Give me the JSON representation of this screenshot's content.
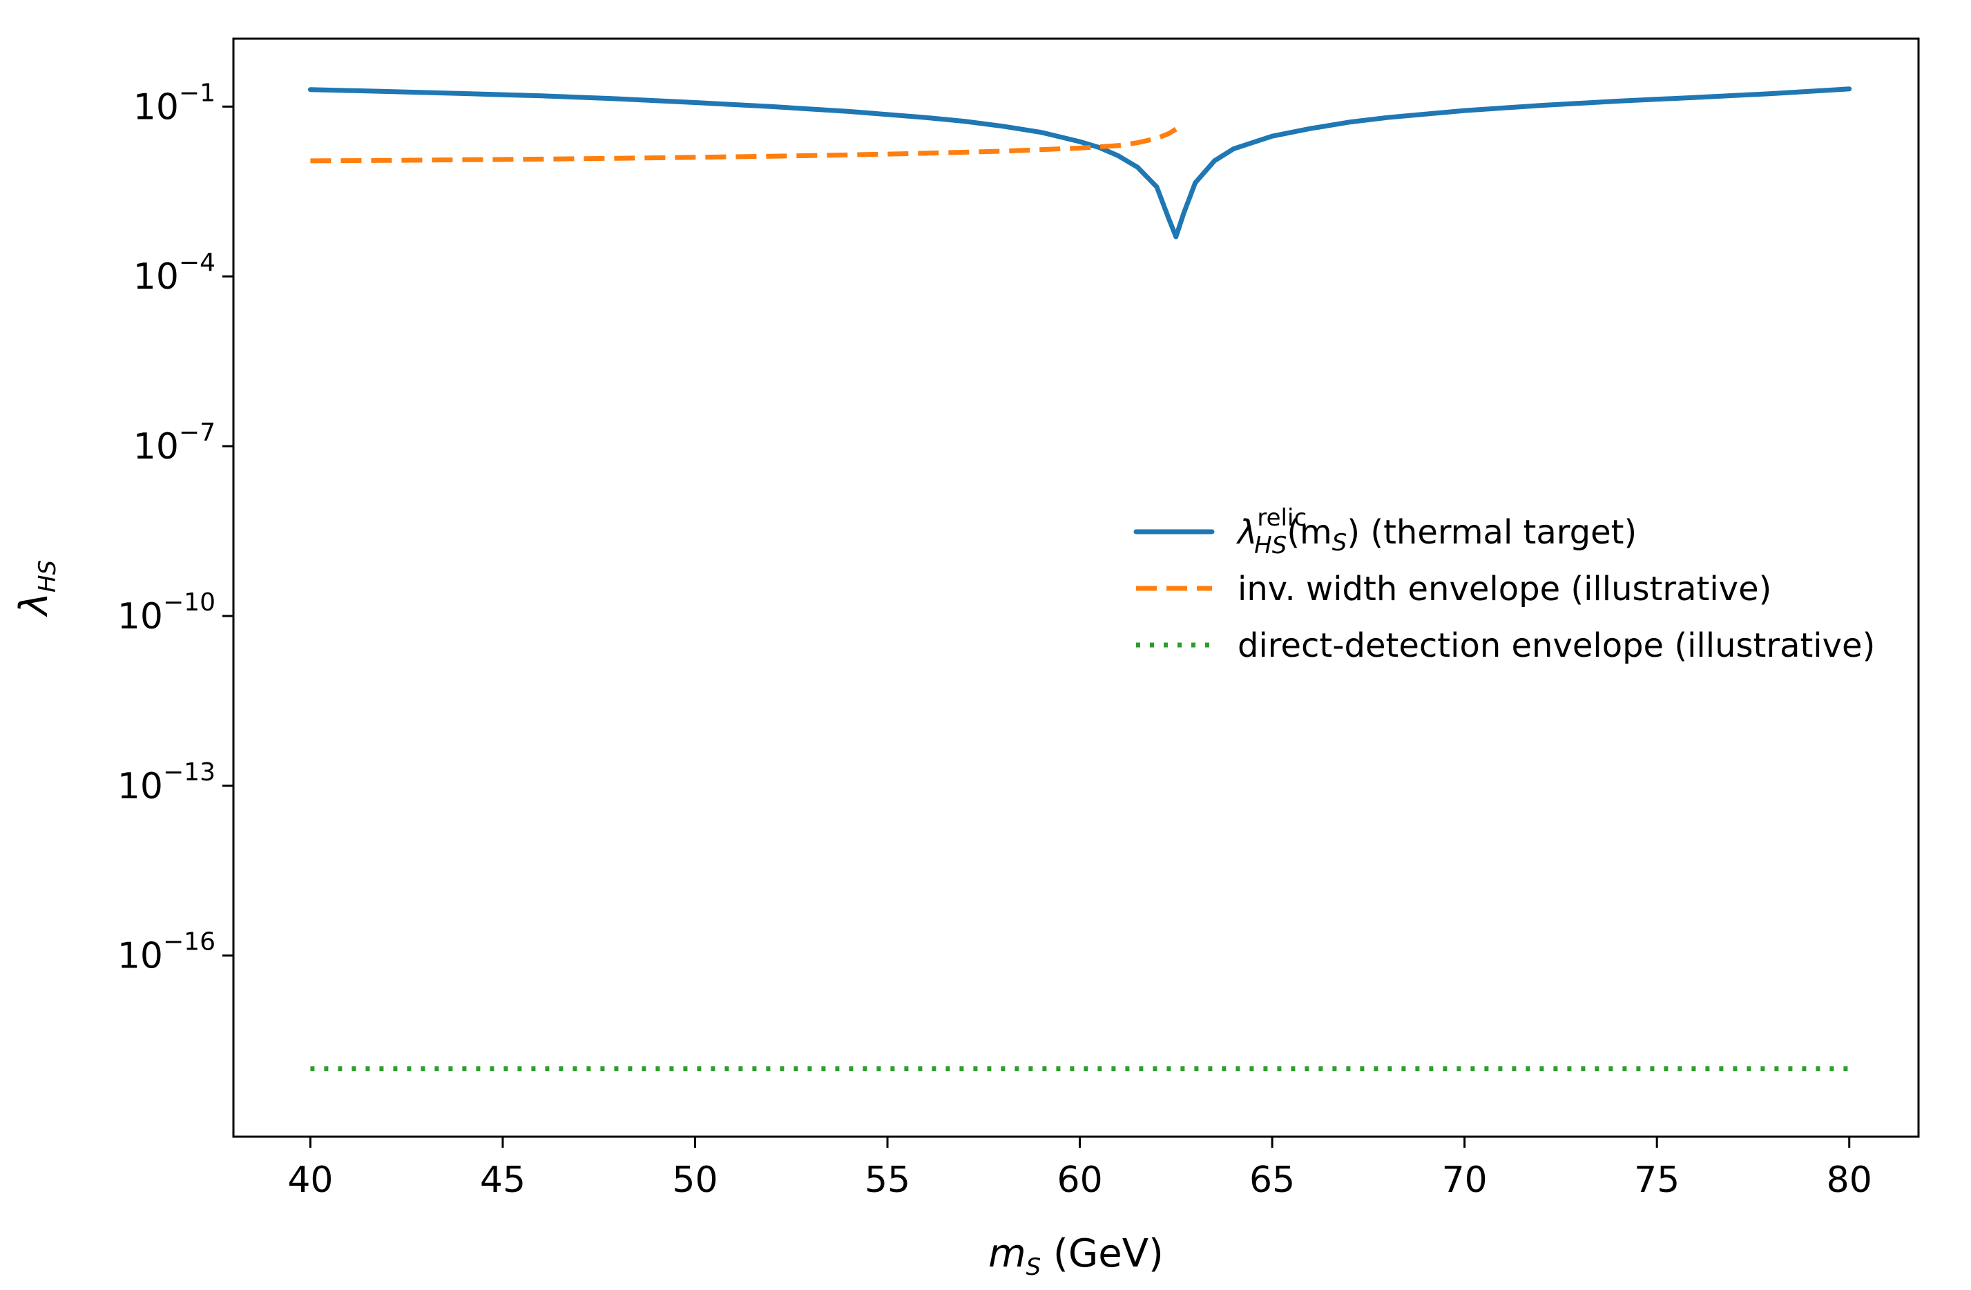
{
  "chart_data": {
    "type": "line",
    "title": "",
    "xlabel": {
      "base": "m",
      "sub": "S",
      "rest": " (GeV)"
    },
    "ylabel": {
      "base": "λ",
      "sub": "HS"
    },
    "xlim": [
      38,
      81.8
    ],
    "ylim_exp": [
      -19.2,
      0.2
    ],
    "y_scale": "log",
    "x_ticks": [
      40,
      45,
      50,
      55,
      60,
      65,
      70,
      75,
      80
    ],
    "y_ticks": [
      {
        "exp": -1,
        "base": "10",
        "sup": "−1"
      },
      {
        "exp": -4,
        "base": "10",
        "sup": "−4"
      },
      {
        "exp": -7,
        "base": "10",
        "sup": "−7"
      },
      {
        "exp": -10,
        "base": "10",
        "sup": "−10"
      },
      {
        "exp": -13,
        "base": "10",
        "sup": "−13"
      },
      {
        "exp": -16,
        "base": "10",
        "sup": "−16"
      }
    ],
    "grid": false,
    "legend_position": "center-right",
    "series": [
      {
        "key": "relic",
        "color": "#1f77b4",
        "style": "solid",
        "legend": {
          "base": "λ",
          "sup": "relic",
          "sub": "HS",
          "rest": "(m",
          "rest_sub": "S",
          "tail": ") (thermal target)"
        },
        "points": [
          [
            40,
            0.2
          ],
          [
            42,
            0.185
          ],
          [
            44,
            0.17
          ],
          [
            46,
            0.155
          ],
          [
            48,
            0.137
          ],
          [
            50,
            0.118
          ],
          [
            52,
            0.1
          ],
          [
            54,
            0.082
          ],
          [
            56,
            0.064
          ],
          [
            57,
            0.055
          ],
          [
            58,
            0.045
          ],
          [
            59,
            0.035
          ],
          [
            60,
            0.024
          ],
          [
            60.5,
            0.019
          ],
          [
            61,
            0.0135
          ],
          [
            61.5,
            0.0085
          ],
          [
            62,
            0.0038
          ],
          [
            62.3,
            0.0011
          ],
          [
            62.5,
            0.0005
          ],
          [
            62.7,
            0.0013
          ],
          [
            63,
            0.0045
          ],
          [
            63.5,
            0.011
          ],
          [
            64,
            0.018
          ],
          [
            65,
            0.03
          ],
          [
            66,
            0.041
          ],
          [
            67,
            0.053
          ],
          [
            68,
            0.064
          ],
          [
            70,
            0.085
          ],
          [
            72,
            0.105
          ],
          [
            74,
            0.125
          ],
          [
            76,
            0.145
          ],
          [
            78,
            0.17
          ],
          [
            80,
            0.205
          ]
        ]
      },
      {
        "key": "invwidth",
        "color": "#ff7f0e",
        "style": "dashed",
        "legend": {
          "text": "inv. width envelope (illustrative)"
        },
        "points": [
          [
            40,
            0.011
          ],
          [
            42,
            0.0112
          ],
          [
            44,
            0.0115
          ],
          [
            46,
            0.0118
          ],
          [
            48,
            0.0122
          ],
          [
            50,
            0.0127
          ],
          [
            52,
            0.0133
          ],
          [
            54,
            0.014
          ],
          [
            56,
            0.015
          ],
          [
            58,
            0.0163
          ],
          [
            60,
            0.0185
          ],
          [
            61,
            0.0205
          ],
          [
            61.5,
            0.023
          ],
          [
            62,
            0.0275
          ],
          [
            62.3,
            0.033
          ],
          [
            62.5,
            0.04
          ]
        ]
      },
      {
        "key": "directdetection",
        "color": "#2ca02c",
        "style": "dotted",
        "legend": {
          "text": "direct-detection envelope (illustrative)"
        },
        "points": [
          [
            40,
            1e-18
          ],
          [
            80,
            1e-18
          ]
        ]
      }
    ]
  }
}
